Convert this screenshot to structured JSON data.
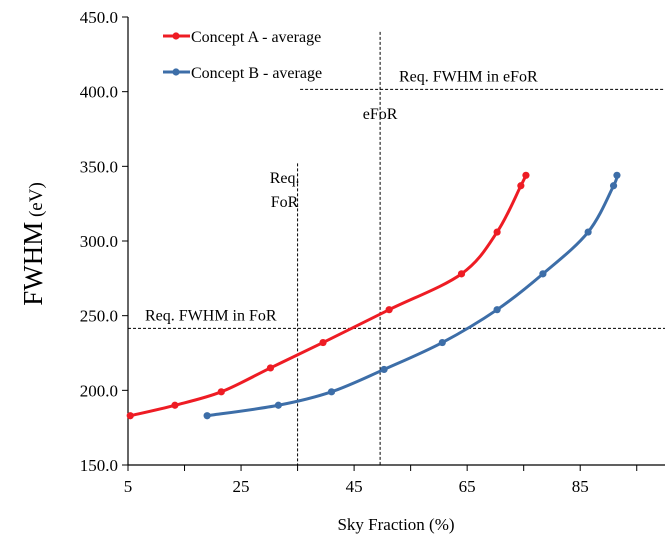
{
  "chart_data": {
    "type": "line",
    "title": "",
    "xlabel": "Sky Fraction (%)",
    "ylabel_main": "FWHM",
    "ylabel_unit": " (eV)",
    "xlim": [
      5,
      100
    ],
    "ylim": [
      150,
      450
    ],
    "x_ticks": [
      5,
      25,
      45,
      65,
      85
    ],
    "y_ticks": [
      "150.0",
      "200.0",
      "250.0",
      "300.0",
      "350.0",
      "400.0",
      "450.0"
    ],
    "grid": false,
    "legend": "top-left",
    "series": [
      {
        "name": "Concept A - average",
        "color": "#ee1c24",
        "marker": "circle",
        "points": [
          {
            "x": 5.4,
            "y": 183
          },
          {
            "x": 13.3,
            "y": 190
          },
          {
            "x": 21.5,
            "y": 199
          },
          {
            "x": 30.2,
            "y": 215
          },
          {
            "x": 39.5,
            "y": 232
          },
          {
            "x": 51.2,
            "y": 254
          },
          {
            "x": 64.0,
            "y": 278
          },
          {
            "x": 70.3,
            "y": 306
          },
          {
            "x": 74.5,
            "y": 337
          },
          {
            "x": 75.4,
            "y": 344
          }
        ]
      },
      {
        "name": "Concept B - average",
        "color": "#3d6ea8",
        "marker": "circle",
        "points": [
          {
            "x": 19.0,
            "y": 183
          },
          {
            "x": 31.6,
            "y": 190
          },
          {
            "x": 41.0,
            "y": 199
          },
          {
            "x": 50.3,
            "y": 214
          },
          {
            "x": 60.6,
            "y": 232
          },
          {
            "x": 70.3,
            "y": 254
          },
          {
            "x": 78.4,
            "y": 278
          },
          {
            "x": 86.4,
            "y": 306
          },
          {
            "x": 90.9,
            "y": 337
          },
          {
            "x": 91.5,
            "y": 344
          }
        ]
      }
    ],
    "reference_lines": [
      {
        "orientation": "vertical",
        "x": 35.0,
        "label_lines": [
          "Req.",
          "FoR"
        ]
      },
      {
        "orientation": "vertical",
        "x": 49.6,
        "label_lines": [
          "eFoR"
        ]
      },
      {
        "orientation": "horizontal",
        "y": 401.5,
        "label_lines": [
          "Req. FWHM in eFoR"
        ]
      },
      {
        "orientation": "horizontal",
        "y": 241.5,
        "label_lines": [
          "Req. FWHM in FoR"
        ]
      }
    ]
  }
}
